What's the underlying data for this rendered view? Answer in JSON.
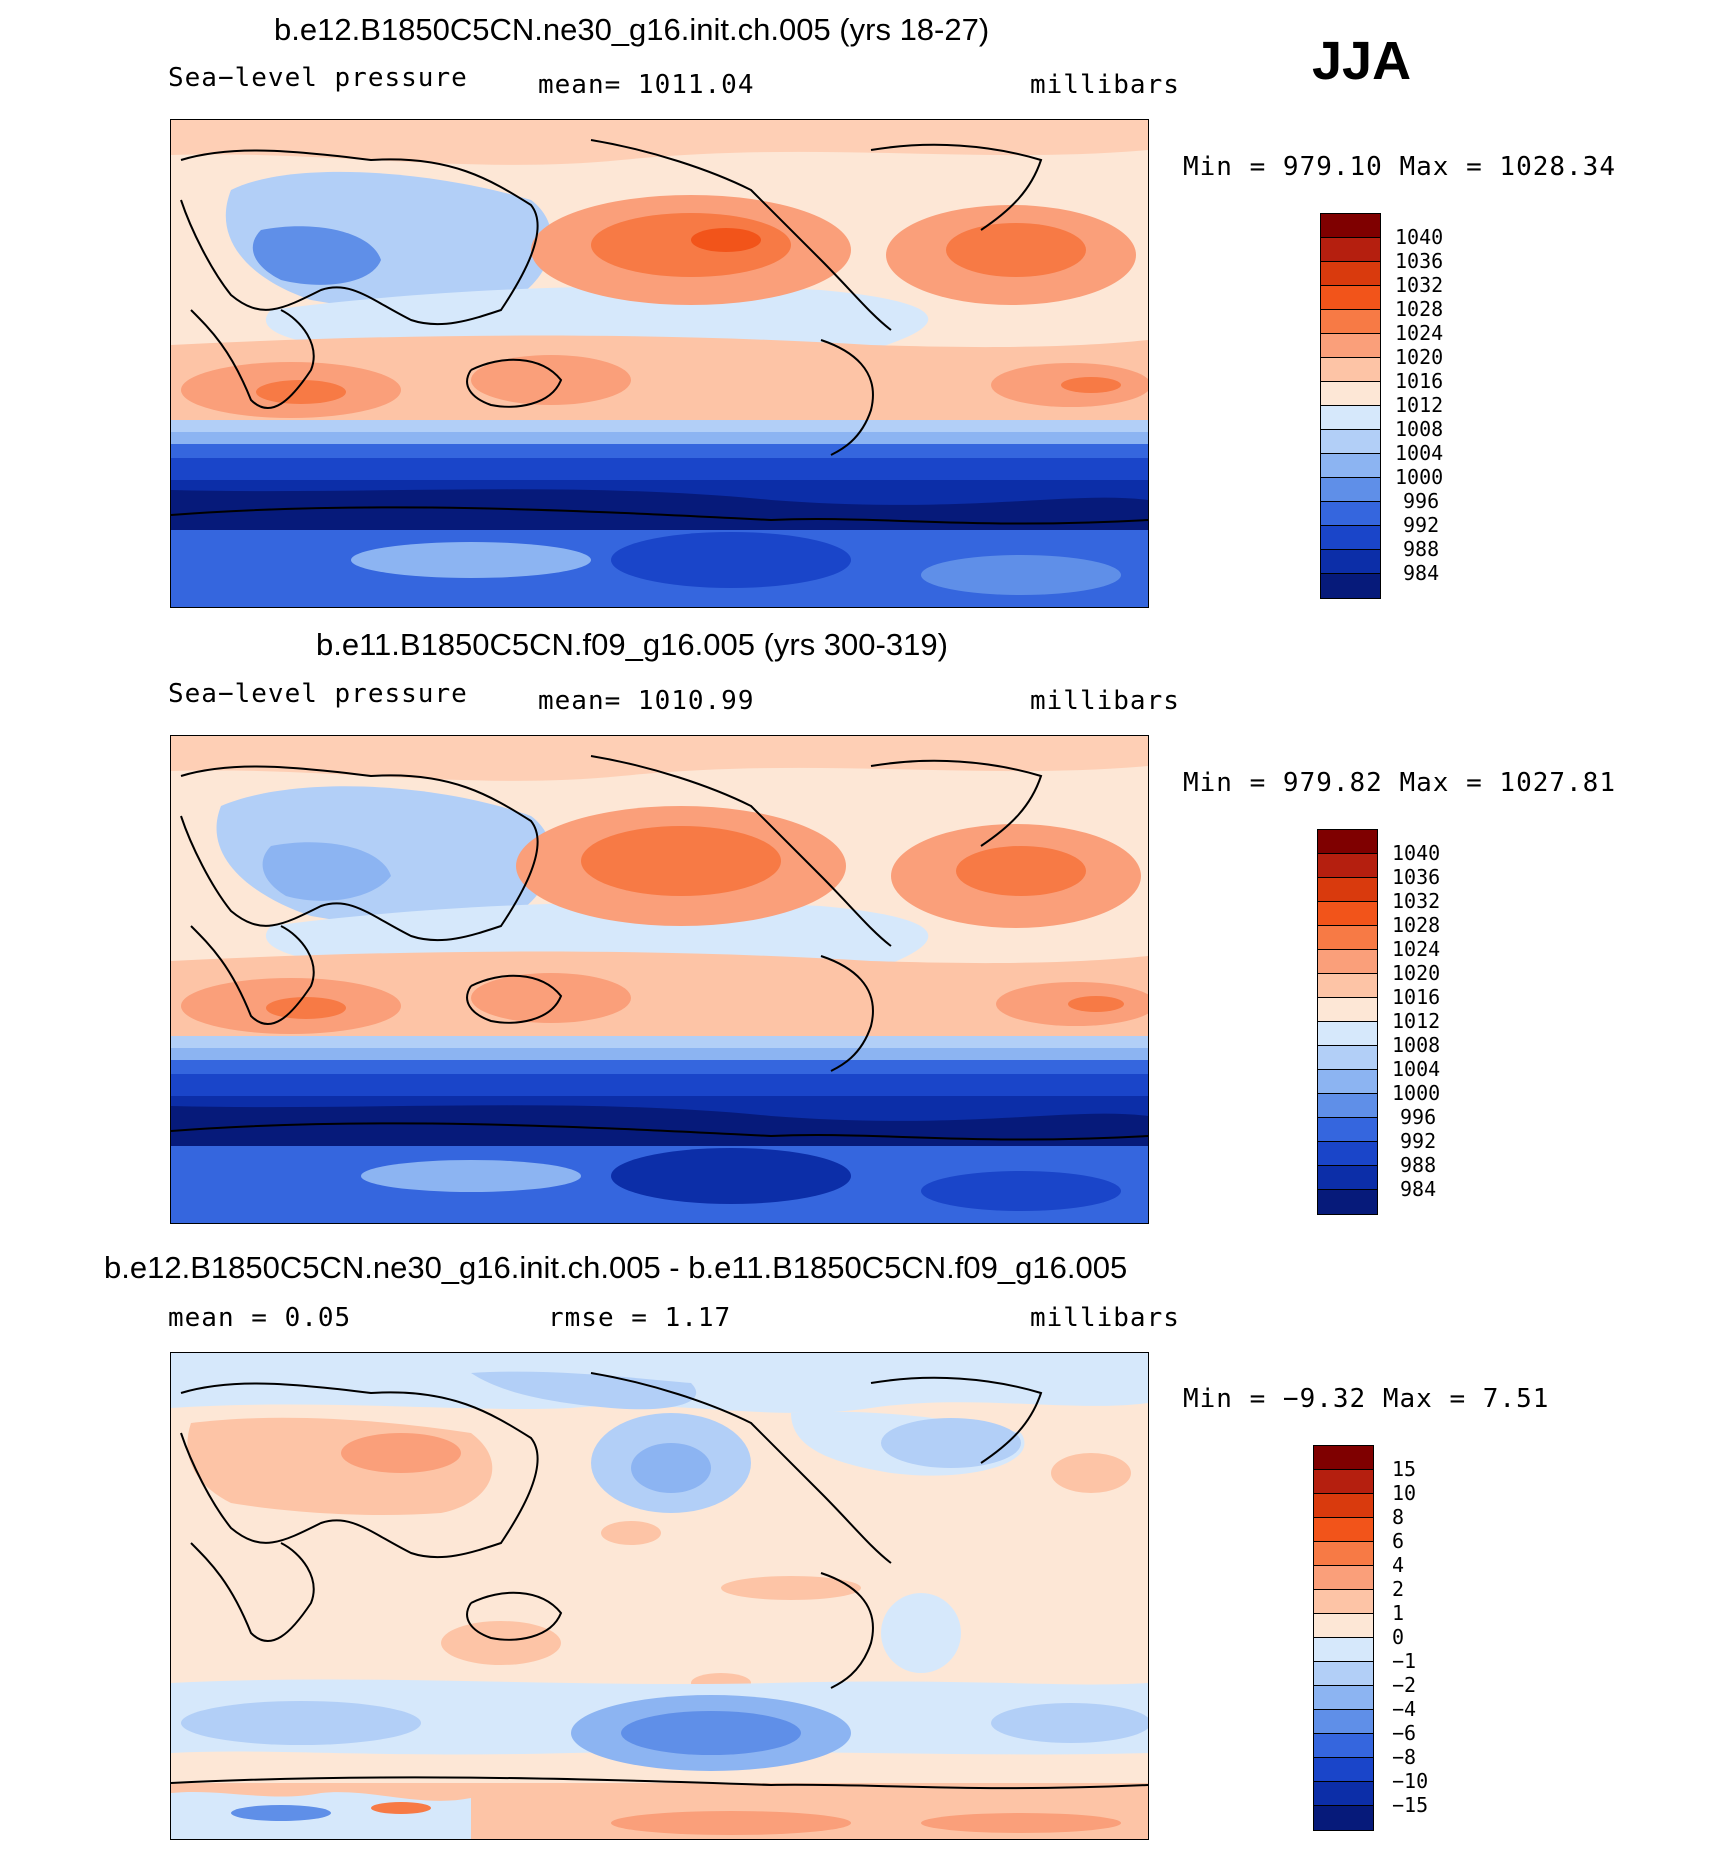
{
  "season": "JJA",
  "legend_colors": [
    "#7f0000",
    "#b51f0f",
    "#d93a0d",
    "#f2541a",
    "#f77a45",
    "#fa9f7a",
    "#fdc4a6",
    "#fde7d6",
    "#d6e8fb",
    "#b2cff7",
    "#8cb4f2",
    "#5f8fe8",
    "#3566de",
    "#1a45c9",
    "#0c2ea8",
    "#061a7a"
  ],
  "panels": [
    {
      "title": "b.e12.B1850C5CN.ne30_g16.init.ch.005 (yrs 18-27)",
      "left_label": "Sea−level pressure",
      "center_label": "mean=  1011.04",
      "right_label": "millibars",
      "minmax": "Min  =  979.10  Max  =  1028.34",
      "legend_ticks": [
        "1040",
        "1036",
        "1032",
        "1028",
        "1024",
        "1020",
        "1016",
        "1012",
        "1008",
        "1004",
        "1000",
        "996",
        "992",
        "988",
        "984"
      ],
      "kind": "slp"
    },
    {
      "title": "b.e11.B1850C5CN.f09_g16.005 (yrs 300-319)",
      "left_label": "Sea−level pressure",
      "center_label": "mean=  1010.99",
      "right_label": "millibars",
      "minmax": "Min  =  979.82  Max  =  1027.81",
      "legend_ticks": [
        "1040",
        "1036",
        "1032",
        "1028",
        "1024",
        "1020",
        "1016",
        "1012",
        "1008",
        "1004",
        "1000",
        "996",
        "992",
        "988",
        "984"
      ],
      "kind": "slp"
    },
    {
      "title": "b.e12.B1850C5CN.ne30_g16.init.ch.005 - b.e11.B1850C5CN.f09_g16.005",
      "left_label": "mean  =     0.05",
      "center_label": "rmse  =     1.17",
      "right_label": "millibars",
      "minmax": "Min  =    −9.32  Max  =      7.51",
      "legend_ticks": [
        "15",
        "10",
        "8",
        "6",
        "4",
        "2",
        "1",
        "0",
        "−1",
        "−2",
        "−4",
        "−6",
        "−8",
        "−10",
        "−15"
      ],
      "kind": "diff"
    }
  ]
}
